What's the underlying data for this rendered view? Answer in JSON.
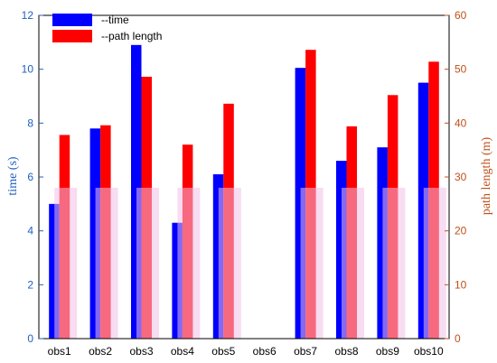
{
  "chart_data": {
    "type": "bar",
    "categories": [
      "obs1",
      "obs2",
      "obs3",
      "obs4",
      "obs5",
      "obs6",
      "obs7",
      "obs8",
      "obs9",
      "obs10"
    ],
    "series": [
      {
        "name": "--time",
        "axis": "left",
        "color": "#0000ff",
        "values": [
          5.0,
          7.8,
          10.9,
          4.3,
          6.1,
          0,
          10.05,
          6.6,
          7.1,
          9.5
        ]
      },
      {
        "name": "--path length",
        "axis": "right",
        "color": "#ff0000",
        "values": [
          37.8,
          39.6,
          48.6,
          36.0,
          43.6,
          0,
          53.6,
          39.4,
          45.2,
          51.4
        ]
      }
    ],
    "ylabel_left": "time (s)",
    "ylabel_right": "path length (m)",
    "ylim_left": [
      0,
      12
    ],
    "ylim_right": [
      0,
      60
    ],
    "yticks_left": [
      "0",
      "2",
      "4",
      "6",
      "8",
      "10",
      "12"
    ],
    "yticks_right": [
      "0",
      "10",
      "20",
      "30",
      "40",
      "50",
      "60"
    ],
    "overlay_band": {
      "color": "#f0c0e8",
      "value_left": 5.6
    },
    "legend": {
      "position": "top-left"
    },
    "grid": false
  }
}
